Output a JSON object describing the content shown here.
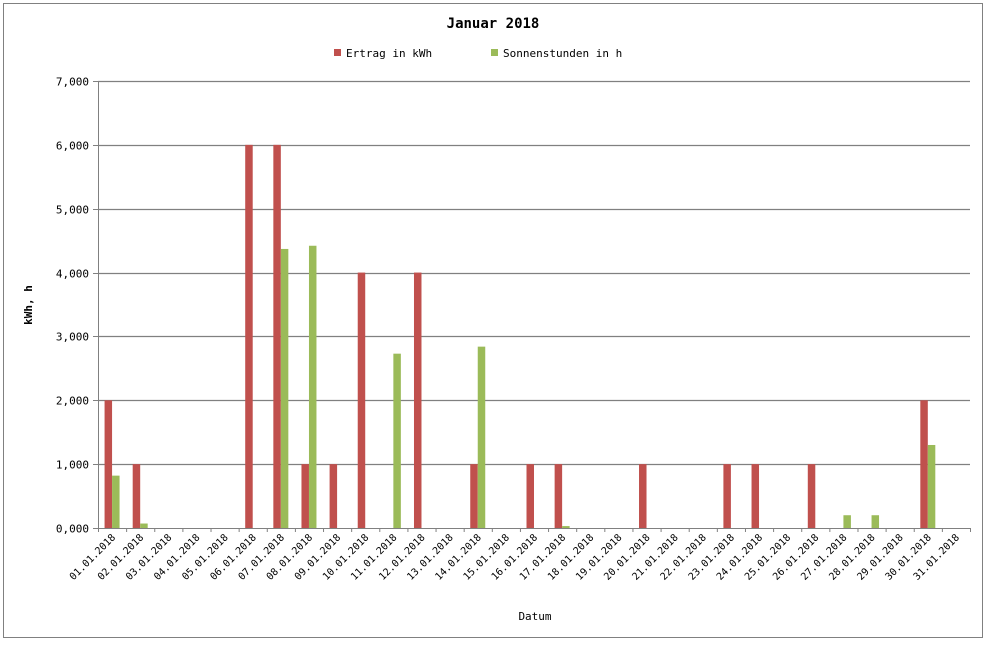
{
  "chart_data": {
    "type": "bar",
    "title": "Januar 2018",
    "xlabel": "Datum",
    "ylabel": "kWh, h",
    "ylim": [
      0,
      7
    ],
    "yticks": [
      "0,000",
      "1,000",
      "2,000",
      "3,000",
      "4,000",
      "5,000",
      "6,000",
      "7,000"
    ],
    "grid": true,
    "legend_position": "top",
    "categories": [
      "01.01.2018",
      "02.01.2018",
      "03.01.2018",
      "04.01.2018",
      "05.01.2018",
      "06.01.2018",
      "07.01.2018",
      "08.01.2018",
      "09.01.2018",
      "10.01.2018",
      "11.01.2018",
      "12.01.2018",
      "13.01.2018",
      "14.01.2018",
      "15.01.2018",
      "16.01.2018",
      "17.01.2018",
      "18.01.2018",
      "19.01.2018",
      "20.01.2018",
      "21.01.2018",
      "22.01.2018",
      "23.01.2018",
      "24.01.2018",
      "25.01.2018",
      "26.01.2018",
      "27.01.2018",
      "28.01.2018",
      "29.01.2018",
      "30.01.2018",
      "31.01.2018"
    ],
    "series": [
      {
        "name": "Ertrag in kWh",
        "color": "#c0504d",
        "values": [
          2,
          1,
          0,
          0,
          0,
          6,
          6,
          1,
          1,
          4,
          0,
          4,
          0,
          1,
          0,
          1,
          1,
          0,
          0,
          1,
          0,
          0,
          1,
          1,
          0,
          1,
          0,
          0,
          0,
          2,
          0
        ]
      },
      {
        "name": "Sonnenstunden in h",
        "color": "#9bbb59",
        "values": [
          0.82,
          0.07,
          0,
          0,
          0,
          0,
          4.37,
          4.42,
          0,
          0,
          2.73,
          0,
          0,
          2.84,
          0,
          0,
          0.03,
          0,
          0,
          0,
          0,
          0,
          0,
          0,
          0,
          0,
          0.2,
          0.2,
          0,
          1.3,
          0
        ]
      }
    ]
  }
}
